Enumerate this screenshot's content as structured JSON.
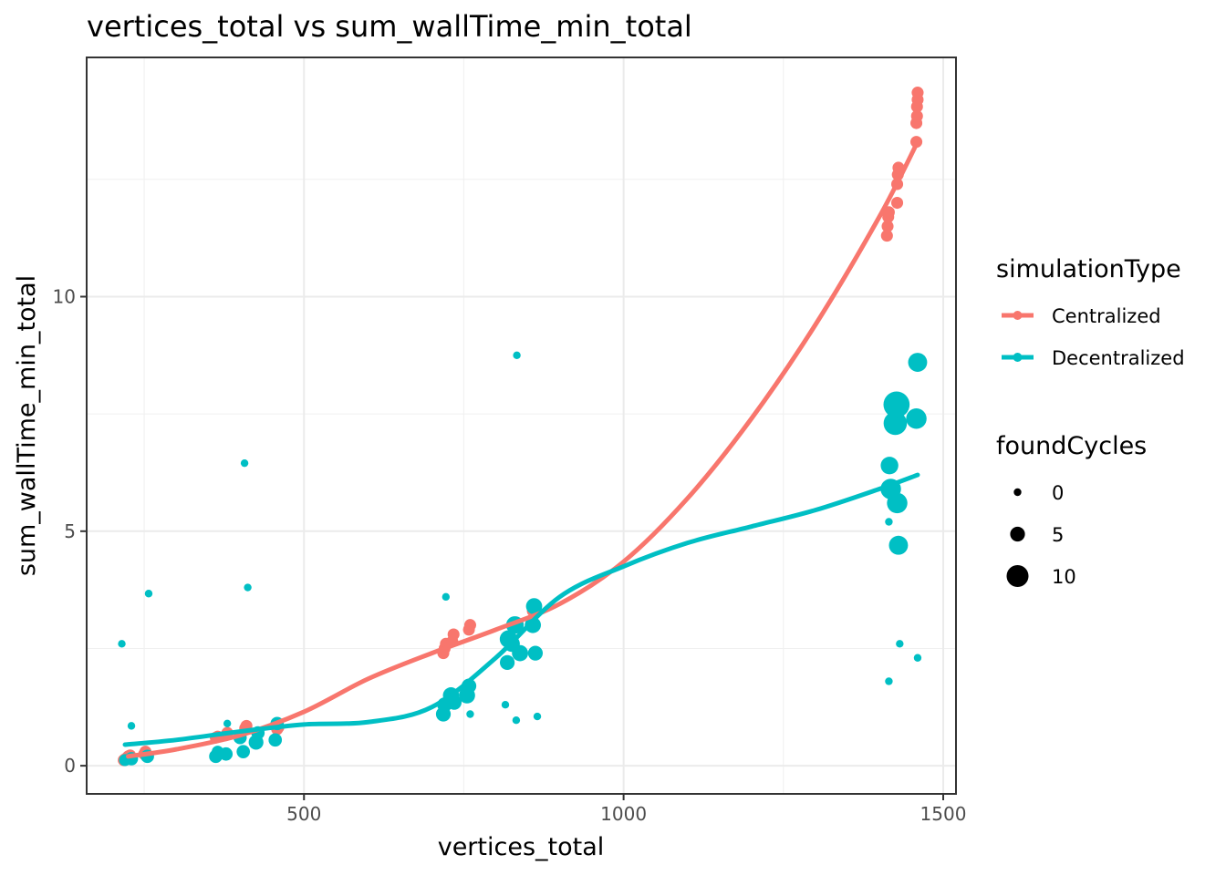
{
  "chart_data": {
    "type": "scatter",
    "title": "vertices_total  vs  sum_wallTime_min_total",
    "xlabel": "vertices_total",
    "ylabel": "sum_wallTime_min_total",
    "xlim": [
      160,
      1520
    ],
    "ylim": [
      -0.6,
      15.1
    ],
    "x_ticks": [
      500,
      1000,
      1500
    ],
    "y_ticks": [
      0,
      5,
      10
    ],
    "x_minor": [
      250,
      750,
      1250
    ],
    "y_minor": [
      2.5,
      7.5,
      12.5
    ],
    "grid": true,
    "legend_position": "right",
    "colors": {
      "Centralized": "#F8766D",
      "Decentralized": "#00BFC4"
    },
    "legend": {
      "color_title": "simulationType",
      "color_entries": [
        "Centralized",
        "Decentralized"
      ],
      "size_title": "foundCycles",
      "size_entries": [
        {
          "label": "0",
          "value": 0
        },
        {
          "label": "5",
          "value": 5
        },
        {
          "label": "10",
          "value": 10
        }
      ]
    },
    "series": [
      {
        "name": "Centralized",
        "points": [
          [
            218,
            0.12,
            3
          ],
          [
            221,
            0.15,
            3
          ],
          [
            225,
            0.2,
            3
          ],
          [
            228,
            0.22,
            3
          ],
          [
            250,
            0.25,
            3
          ],
          [
            252,
            0.3,
            3
          ],
          [
            362,
            0.6,
            3
          ],
          [
            365,
            0.62,
            3
          ],
          [
            378,
            0.65,
            3
          ],
          [
            380,
            0.7,
            3
          ],
          [
            408,
            0.8,
            3
          ],
          [
            410,
            0.85,
            3
          ],
          [
            458,
            0.78,
            3
          ],
          [
            460,
            0.82,
            3
          ],
          [
            718,
            2.4,
            3
          ],
          [
            720,
            2.5,
            3
          ],
          [
            722,
            2.6,
            3
          ],
          [
            732,
            2.65,
            3
          ],
          [
            734,
            2.8,
            3
          ],
          [
            758,
            2.9,
            3
          ],
          [
            760,
            3.0,
            3
          ],
          [
            858,
            3.3,
            3
          ],
          [
            860,
            3.4,
            3
          ],
          [
            1412,
            11.3,
            3
          ],
          [
            1413,
            11.5,
            3
          ],
          [
            1414,
            11.7,
            3
          ],
          [
            1415,
            11.8,
            3
          ],
          [
            1428,
            12.0,
            3
          ],
          [
            1428,
            12.4,
            3
          ],
          [
            1429,
            12.6,
            3
          ],
          [
            1430,
            12.75,
            3
          ],
          [
            1458,
            13.3,
            3
          ],
          [
            1458,
            13.7,
            3
          ],
          [
            1459,
            13.85,
            3
          ],
          [
            1459,
            14.05,
            3
          ],
          [
            1460,
            14.2,
            3
          ],
          [
            1460,
            14.35,
            3
          ]
        ],
        "smooth": [
          [
            225,
            0.2
          ],
          [
            300,
            0.35
          ],
          [
            400,
            0.65
          ],
          [
            500,
            1.15
          ],
          [
            600,
            1.85
          ],
          [
            700,
            2.4
          ],
          [
            800,
            2.9
          ],
          [
            900,
            3.45
          ],
          [
            1000,
            4.35
          ],
          [
            1100,
            5.7
          ],
          [
            1200,
            7.4
          ],
          [
            1300,
            9.4
          ],
          [
            1400,
            11.7
          ],
          [
            1460,
            13.3
          ]
        ]
      },
      {
        "name": "Decentralized",
        "points": [
          [
            215,
            2.6,
            0
          ],
          [
            220,
            0.12,
            3
          ],
          [
            230,
            0.15,
            4
          ],
          [
            230,
            0.85,
            0
          ],
          [
            255,
            0.2,
            4
          ],
          [
            257,
            3.67,
            0
          ],
          [
            362,
            0.2,
            4
          ],
          [
            365,
            0.3,
            3
          ],
          [
            378,
            0.25,
            4
          ],
          [
            380,
            0.9,
            0
          ],
          [
            400,
            0.6,
            4
          ],
          [
            405,
            0.3,
            4
          ],
          [
            407,
            6.45,
            0
          ],
          [
            412,
            3.8,
            0
          ],
          [
            425,
            0.5,
            5
          ],
          [
            428,
            0.7,
            4
          ],
          [
            455,
            0.55,
            4
          ],
          [
            458,
            0.9,
            4
          ],
          [
            718,
            1.1,
            5
          ],
          [
            720,
            1.3,
            5
          ],
          [
            722,
            3.6,
            0
          ],
          [
            730,
            1.5,
            6
          ],
          [
            735,
            1.35,
            5
          ],
          [
            755,
            1.5,
            6
          ],
          [
            758,
            1.7,
            5
          ],
          [
            760,
            1.1,
            0
          ],
          [
            815,
            1.3,
            0
          ],
          [
            818,
            2.2,
            5
          ],
          [
            820,
            2.7,
            7
          ],
          [
            825,
            2.6,
            6
          ],
          [
            830,
            3.0,
            7
          ],
          [
            832,
            0.97,
            0
          ],
          [
            833,
            8.75,
            0
          ],
          [
            838,
            2.4,
            6
          ],
          [
            858,
            3.0,
            6
          ],
          [
            860,
            3.4,
            6
          ],
          [
            862,
            2.4,
            5
          ],
          [
            865,
            1.05,
            0
          ],
          [
            1415,
            5.2,
            0
          ],
          [
            1415,
            1.8,
            0
          ],
          [
            1416,
            6.4,
            7
          ],
          [
            1418,
            5.9,
            9
          ],
          [
            1425,
            7.3,
            11
          ],
          [
            1427,
            7.7,
            13
          ],
          [
            1428,
            5.6,
            9
          ],
          [
            1430,
            4.7,
            8
          ],
          [
            1432,
            2.6,
            0
          ],
          [
            1458,
            7.4,
            9
          ],
          [
            1460,
            8.6,
            8
          ],
          [
            1460,
            2.3,
            0
          ]
        ],
        "smooth": [
          [
            220,
            0.45
          ],
          [
            300,
            0.55
          ],
          [
            400,
            0.73
          ],
          [
            500,
            0.88
          ],
          [
            600,
            0.93
          ],
          [
            700,
            1.25
          ],
          [
            800,
            2.3
          ],
          [
            900,
            3.6
          ],
          [
            1000,
            4.25
          ],
          [
            1100,
            4.75
          ],
          [
            1200,
            5.1
          ],
          [
            1300,
            5.45
          ],
          [
            1400,
            5.9
          ],
          [
            1460,
            6.2
          ]
        ]
      }
    ]
  }
}
